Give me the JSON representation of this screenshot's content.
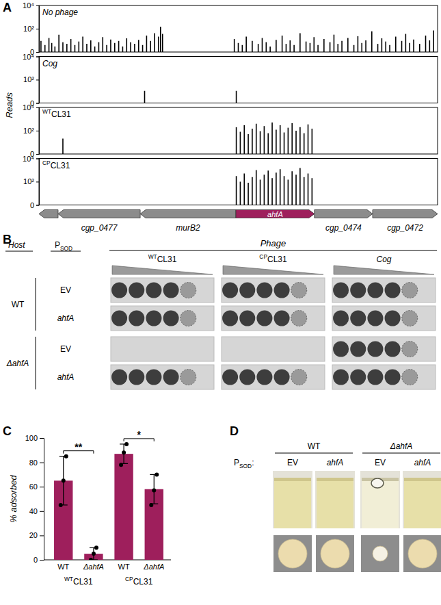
{
  "panel_labels": [
    "A",
    "B",
    "C",
    "D"
  ],
  "chart_data": [
    {
      "type": "bar",
      "title": "No phage",
      "ylabel": "Reads",
      "x": [
        0.5,
        1.5,
        2.5,
        3.2,
        4,
        5,
        6,
        7,
        8,
        9,
        10,
        11,
        12,
        13,
        14,
        15,
        16,
        17,
        18,
        19,
        20,
        21,
        22,
        23,
        24,
        25,
        26,
        27,
        28,
        29,
        30,
        30.5,
        31,
        49,
        50,
        51,
        52,
        53.5,
        55,
        56,
        57,
        58,
        59.5,
        61,
        62,
        63,
        64,
        65.5,
        67,
        68,
        69,
        70,
        71.5,
        73,
        74,
        75,
        76,
        77.5,
        79,
        80,
        81,
        82,
        83.5,
        85,
        86,
        87,
        88,
        89.5,
        91,
        92,
        93,
        94,
        95.5,
        97,
        98,
        99
      ],
      "values": [
        8,
        3,
        15,
        5,
        2,
        30,
        6,
        4,
        12,
        3,
        7,
        20,
        4,
        9,
        2,
        6,
        18,
        3,
        11,
        5,
        8,
        2,
        14,
        6,
        4,
        10,
        3,
        25,
        8,
        40,
        20,
        150,
        35,
        12,
        5,
        3,
        20,
        8,
        4,
        15,
        6,
        2,
        10,
        25,
        4,
        9,
        3,
        40,
        7,
        5,
        18,
        3,
        12,
        6,
        30,
        4,
        8,
        15,
        3,
        22,
        5,
        9,
        60,
        4,
        14,
        7,
        3,
        20,
        8,
        35,
        5,
        11,
        4,
        25,
        9,
        70
      ],
      "color": "#000000",
      "xlim": [
        0,
        100
      ],
      "ylim": [
        0,
        10000
      ],
      "yticks": [
        0,
        {
          "value": 100,
          "label": "10²"
        },
        {
          "value": 10000,
          "label": "10⁴"
        }
      ],
      "log": "y",
      "tick_labels": "y"
    },
    {
      "type": "bar",
      "title": "Cog",
      "x": [
        26.5,
        49.5
      ],
      "values": [
        10,
        10
      ],
      "color": "#000000",
      "xlim": [
        0,
        100
      ],
      "ylim": [
        0,
        10000
      ],
      "yticks": [
        0,
        {
          "value": 100,
          "label": "10²"
        },
        {
          "value": 10000,
          "label": "10⁴"
        }
      ],
      "log": "y",
      "tick_labels": "y"
    },
    {
      "type": "bar",
      "title": {
        "sup": "WT",
        "base": "CL31"
      },
      "x": [
        6,
        49.5,
        50.5,
        51.5,
        52.5,
        53.5,
        54.5,
        55.5,
        56.5,
        57.5,
        58.5,
        59.5,
        60.5,
        61.5,
        62.5,
        63.5,
        64.5,
        65.5,
        66.5,
        67.5,
        68.5
      ],
      "values": [
        20,
        200,
        80,
        300,
        50,
        150,
        400,
        90,
        250,
        60,
        500,
        120,
        300,
        70,
        180,
        450,
        100,
        200,
        60,
        350,
        150
      ],
      "color": "#000000",
      "xlim": [
        0,
        100
      ],
      "ylim": [
        0,
        10000
      ],
      "yticks": [
        0,
        {
          "value": 100,
          "label": "10²"
        },
        {
          "value": 10000,
          "label": "10⁴"
        }
      ],
      "log": "y",
      "tick_labels": "y"
    },
    {
      "type": "bar",
      "title": {
        "sup": "CP",
        "base": "CL31"
      },
      "x": [
        49.5,
        50.5,
        51.5,
        52.5,
        53.5,
        54.5,
        55.5,
        56.5,
        57.5,
        58.5,
        59.5,
        60.5,
        61.5,
        62.5,
        63.5,
        64.5,
        65.5,
        66.5,
        67.5,
        68.5
      ],
      "values": [
        300,
        100,
        500,
        80,
        250,
        1000,
        150,
        400,
        900,
        200,
        600,
        1200,
        300,
        150,
        800,
        400,
        1500,
        250,
        500,
        200
      ],
      "color": "#000000",
      "xlim": [
        0,
        100
      ],
      "ylim": [
        0,
        10000
      ],
      "yticks": [
        0,
        {
          "value": 100,
          "label": "10²"
        },
        {
          "value": 10000,
          "label": "10⁴"
        }
      ],
      "log": "y",
      "tick_labels": "y"
    },
    {
      "type": "bar",
      "ylabel": "% adsorbed",
      "categories": [
        "WT",
        "ΔahfA",
        "WT",
        "ΔahfA"
      ],
      "values": [
        65,
        5,
        87,
        58
      ],
      "errors": [
        20,
        5,
        8,
        12
      ],
      "points": [
        [
          45,
          65,
          85
        ],
        [
          0,
          5,
          10
        ],
        [
          78,
          88,
          95
        ],
        [
          45,
          57,
          70
        ]
      ],
      "groups": [
        {
          "label": {
            "sup": "WT",
            "base": "CL31"
          },
          "significance": "**"
        },
        {
          "label": {
            "sup": "CP",
            "base": "CL31"
          },
          "significance": "*"
        }
      ],
      "color": "#9e1f5c",
      "ylim": [
        0,
        100
      ],
      "yticks": [
        0,
        20,
        40,
        60,
        80,
        100
      ]
    }
  ],
  "gene_map": {
    "color": "#8c8c8c",
    "genes": [
      {
        "name": null,
        "start": 4.8,
        "end": 0
      },
      {
        "name": "cgp_0477",
        "start": 25.4,
        "end": 4.8
      },
      {
        "name": "murB2",
        "start": 49.4,
        "end": 25.4
      },
      {
        "name": "ahfA",
        "start": 49.4,
        "end": 69.1,
        "color": "#9e1f5c"
      },
      {
        "name": "cgp_0474",
        "start": 69.1,
        "end": 83.7
      },
      {
        "name": "cgp_0472",
        "start": 83.7,
        "end": 100
      }
    ]
  },
  "panel_b": {
    "host_header": "Host",
    "promoter": {
      "base": "P",
      "sub": "SOD"
    },
    "phage_header": "Phage",
    "phages": [
      {
        "sup": "WT",
        "base": "CL31"
      },
      {
        "sup": "CP",
        "base": "CL31"
      },
      "Cog"
    ],
    "hosts": [
      {
        "label": "WT",
        "plasmids": [
          "EV",
          "ahfA"
        ]
      },
      {
        "label": "ΔahfA",
        "plasmids": [
          "EV",
          "ahfA"
        ]
      }
    ],
    "clearing_spots": [
      [
        5,
        5,
        5
      ],
      [
        5,
        5,
        5
      ],
      [
        0,
        0,
        5
      ],
      [
        5,
        5,
        5
      ]
    ]
  },
  "panel_d": {
    "promoter": {
      "base": "P",
      "sub": "SOD",
      "suffix": ":"
    },
    "hosts": [
      {
        "label": "WT",
        "plasmids": [
          "EV",
          "ahfA"
        ]
      },
      {
        "label": "ΔahfA",
        "plasmids": [
          "EV",
          "ahfA"
        ]
      }
    ],
    "clumping": [
      [
        false,
        false
      ],
      [
        true,
        false
      ]
    ]
  }
}
